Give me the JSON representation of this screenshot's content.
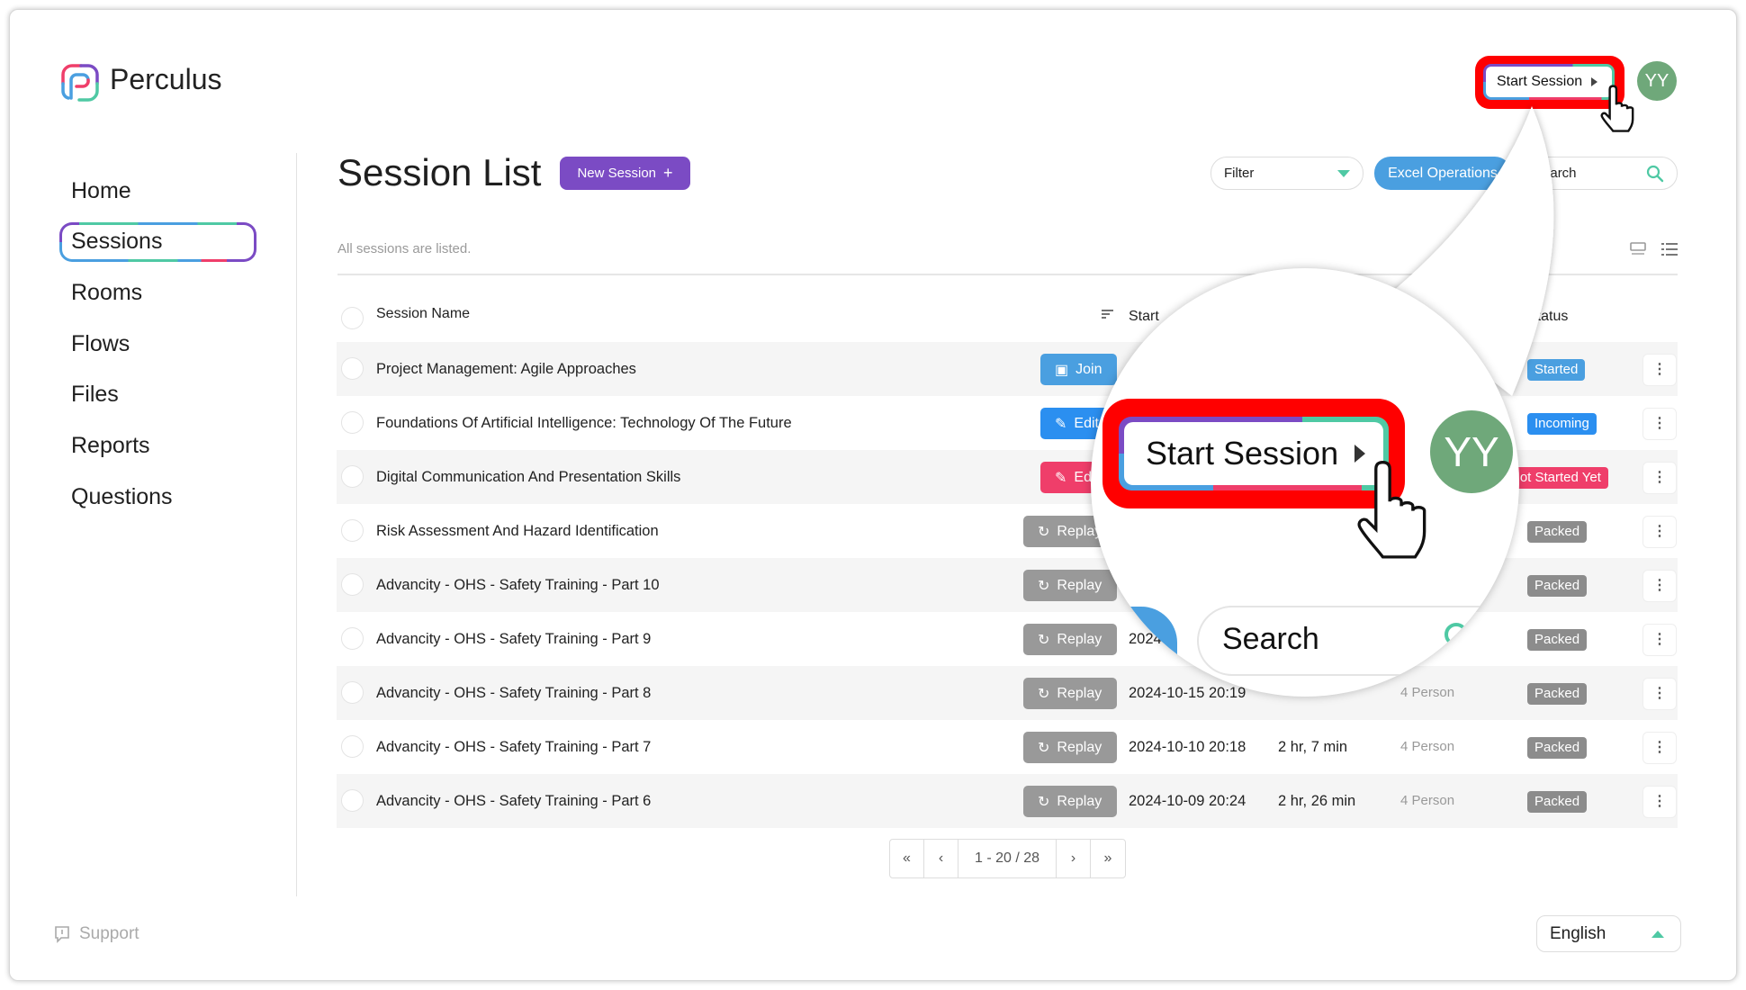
{
  "app": {
    "name": "Perculus",
    "logo_icon": "perculus-logo"
  },
  "sidebar": {
    "items": [
      {
        "label": "Home"
      },
      {
        "label": "Sessions",
        "active": true
      },
      {
        "label": "Rooms"
      },
      {
        "label": "Flows"
      },
      {
        "label": "Files"
      },
      {
        "label": "Reports"
      },
      {
        "label": "Questions"
      }
    ],
    "support_label": "Support"
  },
  "header": {
    "start_session_label": "Start Session",
    "avatar_initials": "YY"
  },
  "page": {
    "title": "Session List",
    "new_session_label": "New Session",
    "subtitle": "All sessions are listed.",
    "filter_label": "Filter",
    "excel_label": "Excel Operations",
    "search_placeholder": "Search"
  },
  "table": {
    "headers": {
      "name": "Session Name",
      "start": "Start",
      "status": "Status"
    },
    "rows": [
      {
        "name": "Project Management: Agile Approaches",
        "action": "Join",
        "action_color": "#4a9fe0",
        "date": "",
        "duration": "",
        "participants": "",
        "status": "Started",
        "status_color": "#4a9fe0"
      },
      {
        "name": "Foundations Of Artificial Intelligence: Technology Of The Future",
        "action": "Edit",
        "action_color": "#2b8ff0",
        "date": "",
        "duration": "",
        "participants": "",
        "status": "Incoming",
        "status_color": "#2b8ff0"
      },
      {
        "name": "Digital Communication And Presentation Skills",
        "action": "Edit",
        "action_color": "#ef3e6a",
        "date": "",
        "duration": "",
        "participants": "",
        "status": "Not Started Yet",
        "status_color": "#ef3e6a"
      },
      {
        "name": "Risk Assessment And Hazard Identification",
        "action": "Replay",
        "action_color": "#999999",
        "date": "",
        "duration": "",
        "participants": "",
        "status": "Packed",
        "status_color": "#8c8c8c"
      },
      {
        "name": "Advancity - OHS - Safety Training - Part 10",
        "action": "Replay",
        "action_color": "#999999",
        "date": "",
        "duration": "",
        "participants": "",
        "status": "Packed",
        "status_color": "#8c8c8c"
      },
      {
        "name": "Advancity - OHS - Safety Training - Part 9",
        "action": "Replay",
        "action_color": "#999999",
        "date": "2024",
        "duration": "",
        "participants": "",
        "status": "Packed",
        "status_color": "#8c8c8c"
      },
      {
        "name": "Advancity - OHS - Safety Training - Part 8",
        "action": "Replay",
        "action_color": "#999999",
        "date": "2024-10-15 20:19",
        "duration": "",
        "participants": "4 Person",
        "status": "Packed",
        "status_color": "#8c8c8c"
      },
      {
        "name": "Advancity - OHS - Safety Training - Part 7",
        "action": "Replay",
        "action_color": "#999999",
        "date": "2024-10-10 20:18",
        "duration": "2 hr, 7 min",
        "participants": "4 Person",
        "status": "Packed",
        "status_color": "#8c8c8c"
      },
      {
        "name": "Advancity - OHS - Safety Training - Part 6",
        "action": "Replay",
        "action_color": "#999999",
        "date": "2024-10-09 20:24",
        "duration": "2 hr, 26 min",
        "participants": "4 Person",
        "status": "Packed",
        "status_color": "#8c8c8c"
      }
    ]
  },
  "pagination": {
    "first": "«",
    "prev": "‹",
    "range": "1 - 20 / 28",
    "next": "›",
    "last": "»"
  },
  "language": {
    "selected": "English"
  },
  "colors": {
    "purple": "#7b4bc4",
    "blue": "#4a9fe0",
    "pink": "#ef3e6a",
    "teal": "#4fc9a4",
    "highlight": "#ff0000",
    "avatar": "#6fa87a"
  }
}
